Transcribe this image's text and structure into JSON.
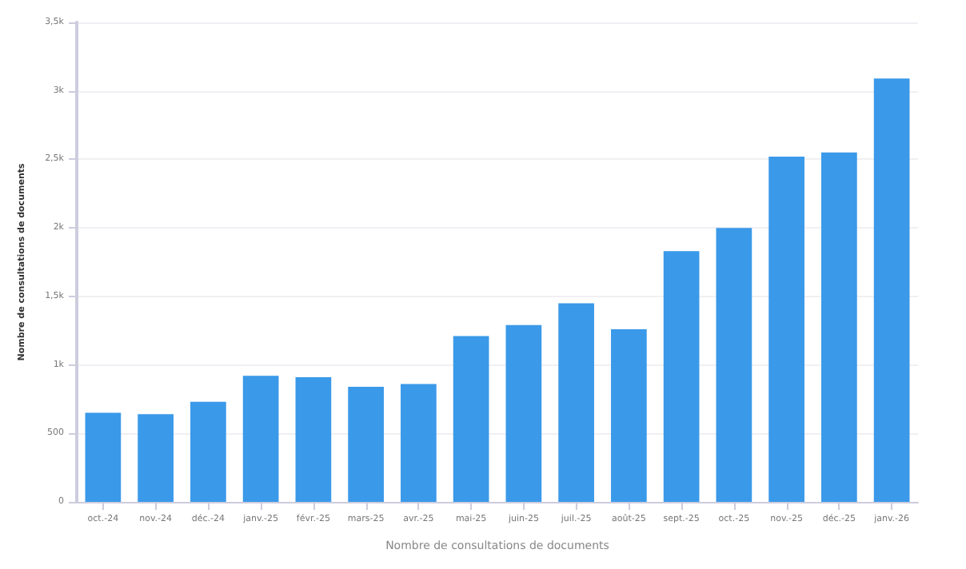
{
  "chart_data": {
    "type": "bar",
    "xlabel": "Nombre de consultations de documents",
    "ylabel": "Nombre de consultations de documents",
    "categories": [
      "oct.-24",
      "nov.-24",
      "déc.-24",
      "janv.-25",
      "févr.-25",
      "mars-25",
      "avr.-25",
      "mai-25",
      "juin-25",
      "juil.-25",
      "août-25",
      "sept.-25",
      "oct.-25",
      "nov.-25",
      "déc.-25",
      "janv.-26"
    ],
    "values": [
      650,
      640,
      730,
      920,
      910,
      840,
      860,
      1210,
      1290,
      1450,
      1260,
      1830,
      2000,
      2520,
      2550,
      3090
    ],
    "color": "#3a99e9",
    "ylim": [
      0,
      3500
    ],
    "yticks": [
      0,
      500,
      {
        "value": 1000,
        "label": "1k"
      },
      {
        "value": 1500,
        "label": "1,5k"
      },
      {
        "value": 2000,
        "label": "2k"
      },
      {
        "value": 2500,
        "label": "2,5k"
      },
      {
        "value": 3000,
        "label": "3k"
      },
      {
        "value": 3500,
        "label": "3,5k"
      }
    ],
    "grid": "y"
  }
}
